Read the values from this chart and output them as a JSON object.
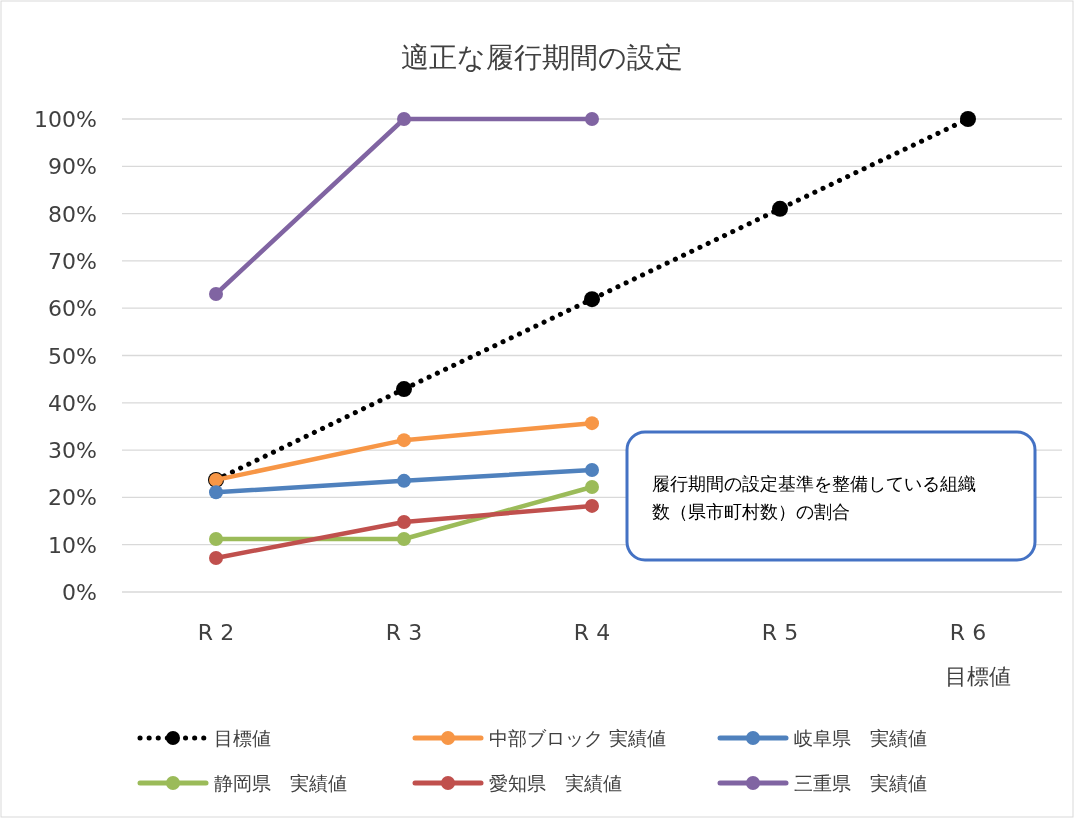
{
  "chart_data": {
    "type": "line",
    "title": "適正な履行期間の設定",
    "categories": [
      "R 2",
      "R 3",
      "R 4",
      "R 5",
      "R 6\n目標値"
    ],
    "series": [
      {
        "name": "目標値",
        "color": "#000000",
        "line_style": "dotted",
        "values": [
          23.7,
          42.9,
          61.9,
          81.0,
          100
        ]
      },
      {
        "name": "中部ブロック 実績値",
        "color": "#f79646",
        "values": [
          23.7,
          32.1,
          35.7,
          null,
          null
        ]
      },
      {
        "name": "岐阜県　実績値",
        "color": "#4f81bd",
        "values": [
          21.1,
          23.5,
          25.8,
          null,
          null
        ]
      },
      {
        "name": "静岡県　実績値",
        "color": "#9bbb59",
        "values": [
          11.2,
          11.2,
          22.2,
          null,
          null
        ]
      },
      {
        "name": "愛知県　実績値",
        "color": "#c0504d",
        "values": [
          7.2,
          14.8,
          18.2,
          null,
          null
        ]
      },
      {
        "name": "三重県　実績値",
        "color": "#8064a2",
        "values": [
          63.0,
          100,
          100,
          null,
          null
        ]
      }
    ],
    "ylim": [
      0,
      100
    ],
    "yticks": [
      {
        "value": 0,
        "label": "0%"
      },
      {
        "value": 10,
        "label": "10%"
      },
      {
        "value": 20,
        "label": "20%"
      },
      {
        "value": 30,
        "label": "30%"
      },
      {
        "value": 40,
        "label": "40%"
      },
      {
        "value": 50,
        "label": "50%"
      },
      {
        "value": 60,
        "label": "60%"
      },
      {
        "value": 70,
        "label": "70%"
      },
      {
        "value": 80,
        "label": "80%"
      },
      {
        "value": 90,
        "label": "90%"
      },
      {
        "value": 100,
        "label": "100%"
      }
    ],
    "grid": "y",
    "legend": "bottom",
    "marker": "circle",
    "annotations": [
      "履行期間の設定基準を整備している組織数（県市町村数）の割合"
    ]
  }
}
